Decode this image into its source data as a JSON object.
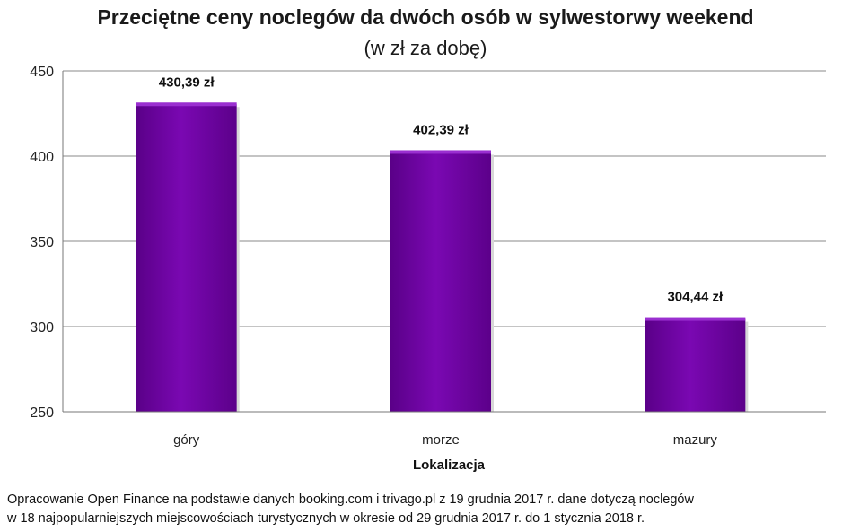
{
  "chart_data": {
    "type": "bar",
    "title": "Przeciętne ceny noclegów da dwóch osób w sylwestorwy weekend",
    "subtitle": "(w zł za dobę)",
    "xlabel": "Lokalizacja",
    "ylabel": "",
    "categories": [
      "góry",
      "morze",
      "mazury"
    ],
    "values": [
      430.39,
      402.39,
      304.44
    ],
    "data_labels": [
      "430,39 zł",
      "402,39 zł",
      "304,44 zł"
    ],
    "ylim": [
      250,
      450
    ],
    "yticks": [
      250,
      300,
      350,
      400,
      450
    ],
    "grid": true,
    "bar_color": "#7200a6",
    "bar_top_color": "#9a2fd0"
  },
  "footnote": {
    "line1": "Opracowanie Open Finance na podstawie danych booking.com i trivago.pl z 19 grudnia 2017 r. dane dotyczą noclegów",
    "line2": "w 18 najpopularniejszych miejscowościach turystycznych w okresie od 29 grudnia 2017 r. do 1 stycznia 2018 r."
  }
}
